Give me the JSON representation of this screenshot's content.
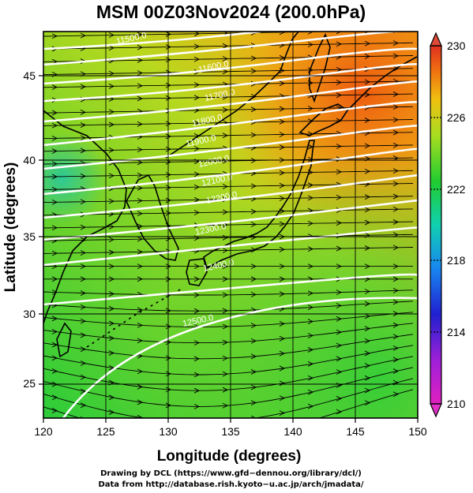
{
  "title": "MSM 00Z03Nov2024 (200.0hPa)",
  "map": {
    "xlabel": "Longitude (degrees)",
    "ylabel": "Latitude  (degrees)",
    "lon_range": [
      120,
      150
    ],
    "lat_range": [
      22.4,
      47.6
    ],
    "lon_ticks": [
      "120",
      "125",
      "130",
      "135",
      "140",
      "145",
      "150"
    ],
    "lat_ticks": [
      "25",
      "30",
      "35",
      "40",
      "45"
    ],
    "contour_labels": [
      "11500.0",
      "11600.0",
      "11700.0",
      "11800.0",
      "11900.0",
      "12000.0",
      "12100.0",
      "12200.0",
      "12300.0",
      "12400.0",
      "12500.0"
    ],
    "field": "temperature (K) color shading, geopotential height contours, wind streamlines"
  },
  "colorbar": {
    "min": 210,
    "max": 230,
    "tick_labels": [
      "230",
      "226",
      "222",
      "218",
      "214",
      "210"
    ]
  },
  "footer": {
    "line1": "Drawing by DCL (https://www.gfd−dennou.org/library/dcl/)",
    "line2": "Data from http://database.rish.kyoto−u.ac.jp/arch/jmadata/"
  },
  "colors": {
    "warm": "#ee6a10",
    "green": "#2fcc2f",
    "yellow_green": "#a6dd22",
    "contour": "#ffffff",
    "coast": "#000000"
  }
}
